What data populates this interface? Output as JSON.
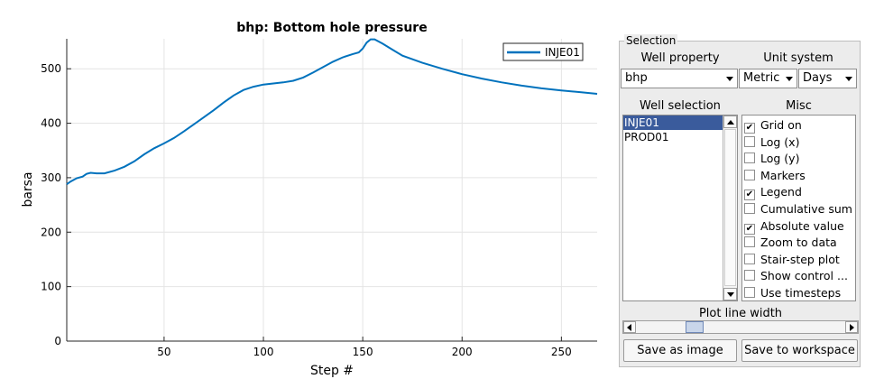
{
  "chart_data": {
    "type": "line",
    "title": "bhp: Bottom hole pressure",
    "xlabel": "Step #",
    "ylabel": "barsa",
    "xlim": [
      1,
      268
    ],
    "ylim": [
      0,
      555
    ],
    "xticks": [
      50,
      100,
      150,
      200,
      250
    ],
    "yticks": [
      0,
      100,
      200,
      300,
      400,
      500
    ],
    "grid": true,
    "legend_position": "top-right",
    "series": [
      {
        "name": "INJE01",
        "color": "#0072bd",
        "points": [
          [
            1,
            288
          ],
          [
            3,
            293
          ],
          [
            6,
            299
          ],
          [
            9,
            302
          ],
          [
            11,
            307
          ],
          [
            13,
            309
          ],
          [
            16,
            308
          ],
          [
            20,
            308
          ],
          [
            25,
            313
          ],
          [
            30,
            320
          ],
          [
            35,
            330
          ],
          [
            40,
            343
          ],
          [
            45,
            354
          ],
          [
            50,
            363
          ],
          [
            55,
            373
          ],
          [
            60,
            385
          ],
          [
            65,
            398
          ],
          [
            70,
            411
          ],
          [
            75,
            424
          ],
          [
            80,
            438
          ],
          [
            85,
            451
          ],
          [
            90,
            461
          ],
          [
            95,
            467
          ],
          [
            100,
            471
          ],
          [
            105,
            473
          ],
          [
            110,
            475
          ],
          [
            115,
            478
          ],
          [
            120,
            484
          ],
          [
            125,
            493
          ],
          [
            130,
            503
          ],
          [
            135,
            513
          ],
          [
            140,
            521
          ],
          [
            145,
            527
          ],
          [
            148,
            530
          ],
          [
            150,
            537
          ],
          [
            152,
            548
          ],
          [
            154,
            554
          ],
          [
            156,
            554
          ],
          [
            160,
            546
          ],
          [
            165,
            535
          ],
          [
            170,
            524
          ],
          [
            180,
            511
          ],
          [
            190,
            500
          ],
          [
            200,
            490
          ],
          [
            210,
            482
          ],
          [
            220,
            475
          ],
          [
            230,
            469
          ],
          [
            240,
            464
          ],
          [
            250,
            460
          ],
          [
            260,
            457
          ],
          [
            268,
            454
          ]
        ]
      }
    ]
  },
  "panel": {
    "title": "Selection",
    "well_property_label": "Well property",
    "well_property_value": "bhp",
    "unit_system_label": "Unit system",
    "unit_value": "Metric",
    "time_unit_value": "Days",
    "well_selection_label": "Well selection",
    "wells": [
      "INJE01",
      "PROD01"
    ],
    "misc_label": "Misc",
    "misc": [
      {
        "label": "Grid on",
        "checked": true
      },
      {
        "label": "Log (x)",
        "checked": false
      },
      {
        "label": "Log (y)",
        "checked": false
      },
      {
        "label": "Markers",
        "checked": false
      },
      {
        "label": "Legend",
        "checked": true
      },
      {
        "label": "Cumulative sum",
        "checked": false
      },
      {
        "label": "Absolute value",
        "checked": true
      },
      {
        "label": "Zoom to data",
        "checked": false
      },
      {
        "label": "Stair-step plot",
        "checked": false
      },
      {
        "label": "Show control ...",
        "checked": false
      },
      {
        "label": "Use timesteps",
        "checked": false
      }
    ],
    "line_width_label": "Plot line width",
    "line_width_fraction": 0.26,
    "save_image_label": "Save as image",
    "save_workspace_label": "Save to workspace"
  }
}
